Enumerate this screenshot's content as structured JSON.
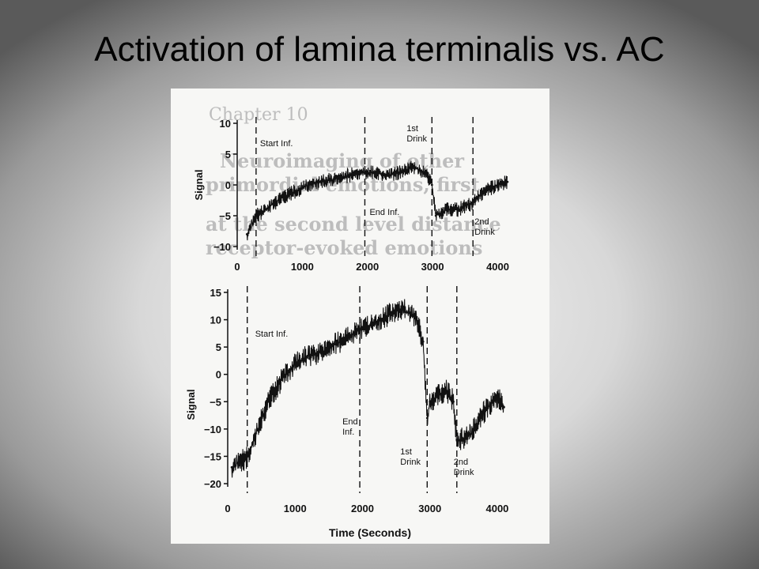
{
  "slide": {
    "title": "Activation of lamina terminalis vs. AC"
  },
  "background_text": {
    "chapter": "Chapter 10",
    "lines": [
      "Neuroimaging of other",
      "primordial emotions, first",
      "at the second level distance",
      "receptor-evoked emotions"
    ]
  },
  "colors": {
    "trace": "#111111",
    "figure_bg": "#f7f7f5",
    "slide_text": "#000000"
  },
  "chart_data": [
    {
      "type": "line",
      "title": "",
      "xlabel": "",
      "ylabel": "Signal",
      "xlim": [
        0,
        4200
      ],
      "ylim": [
        -10,
        10
      ],
      "xticks": [
        0,
        1000,
        2000,
        3000,
        4000
      ],
      "yticks": [
        10,
        5,
        0,
        -5,
        -10
      ],
      "grid": false,
      "events": [
        {
          "x": 290,
          "label": "Start Inf."
        },
        {
          "x": 1960,
          "label": "End Inf."
        },
        {
          "x": 2990,
          "label": "1st Drink"
        },
        {
          "x": 3620,
          "label": "2nd Drink"
        }
      ],
      "series": [
        {
          "x": [
            150,
            300,
            500,
            700,
            900,
            1100,
            1300,
            1500,
            1700,
            1900,
            2100,
            2300,
            2500,
            2700,
            2900,
            2990,
            3050,
            3200,
            3400,
            3600,
            3800,
            4000,
            4150
          ],
          "y": [
            -8,
            -5,
            -3.5,
            -2,
            -1,
            0,
            0.5,
            1,
            1.5,
            2,
            2,
            1.5,
            2,
            3,
            2,
            0,
            -5,
            -4,
            -4,
            -3,
            -1,
            0,
            0.5
          ]
        }
      ]
    },
    {
      "type": "line",
      "title": "",
      "xlabel": "Time (Seconds)",
      "ylabel": "Signal",
      "xlim": [
        0,
        4200
      ],
      "ylim": [
        -20,
        15
      ],
      "xticks": [
        0,
        1000,
        2000,
        3000,
        4000
      ],
      "yticks": [
        15,
        10,
        5,
        0,
        -5,
        -10,
        -15,
        -20
      ],
      "grid": false,
      "events": [
        {
          "x": 290,
          "label": "Start Inf."
        },
        {
          "x": 1960,
          "label": "End Inf."
        },
        {
          "x": 2960,
          "label": "1st Drink"
        },
        {
          "x": 3400,
          "label": "2nd Drink"
        }
      ],
      "series": [
        {
          "x": [
            60,
            200,
            300,
            450,
            600,
            800,
            1000,
            1200,
            1400,
            1600,
            1800,
            2000,
            2200,
            2400,
            2600,
            2800,
            2900,
            2960,
            3000,
            3100,
            3250,
            3350,
            3400,
            3450,
            3600,
            3800,
            4000,
            4100
          ],
          "y": [
            -17,
            -16,
            -15,
            -10,
            -5,
            -1,
            2,
            3.5,
            4,
            5.5,
            7,
            8.5,
            9.5,
            11,
            12,
            10,
            6,
            -8,
            -5,
            -4,
            -3,
            -5,
            -12,
            -12,
            -11,
            -7,
            -4,
            -6
          ]
        }
      ]
    }
  ]
}
